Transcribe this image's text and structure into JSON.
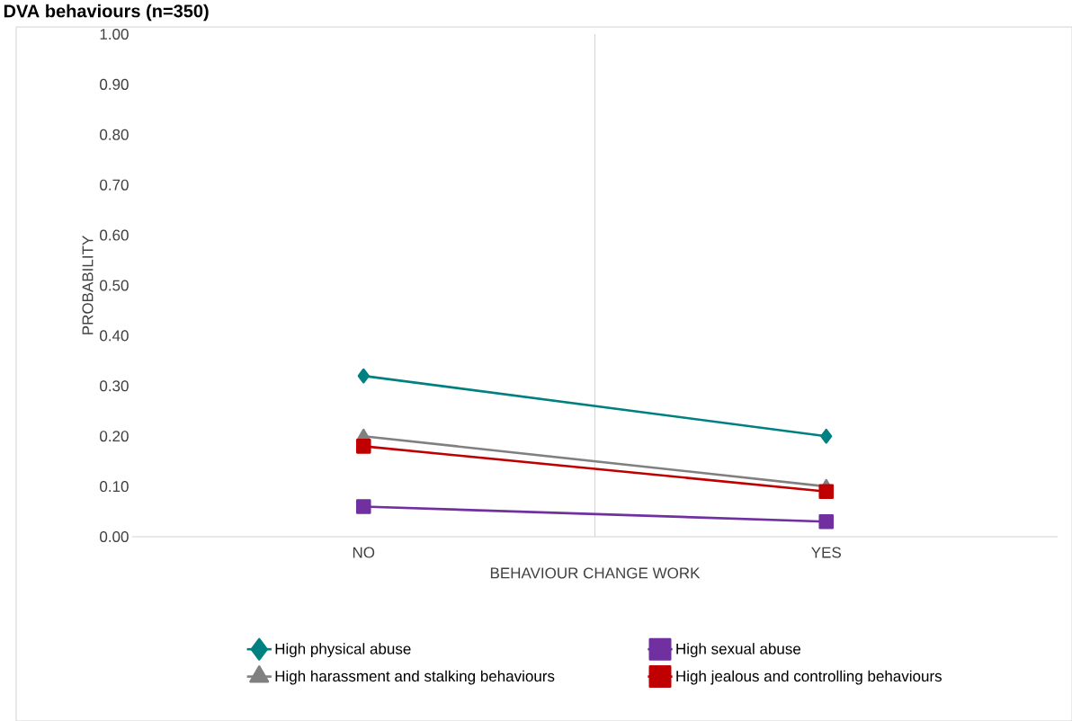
{
  "chart_data": {
    "type": "line",
    "title": "DVA behaviours (n=350)",
    "xlabel": "BEHAVIOUR CHANGE WORK",
    "ylabel": "PROBABILITY",
    "categories": [
      "NO",
      "YES"
    ],
    "series": [
      {
        "name": "High physical abuse",
        "color": "#008080",
        "marker": "diamond",
        "values": [
          0.32,
          0.2
        ]
      },
      {
        "name": "High sexual abuse",
        "color": "#7030a0",
        "marker": "square",
        "values": [
          0.06,
          0.03
        ]
      },
      {
        "name": "High harassment and stalking behaviours",
        "color": "#808080",
        "marker": "triangle",
        "values": [
          0.2,
          0.1
        ]
      },
      {
        "name": "High jealous and controlling behaviours",
        "color": "#c00000",
        "marker": "square",
        "values": [
          0.18,
          0.09
        ]
      }
    ],
    "ylim": [
      0,
      1
    ],
    "yticks": [
      {
        "value": 0,
        "label": "0.00"
      },
      {
        "value": 0.1,
        "label": "0.10"
      },
      {
        "value": 0.2,
        "label": "0.20"
      },
      {
        "value": 0.3,
        "label": "0.30"
      },
      {
        "value": 0.4,
        "label": "0.40"
      },
      {
        "value": 0.5,
        "label": "0.50"
      },
      {
        "value": 0.6,
        "label": "0.60"
      },
      {
        "value": 0.7,
        "label": "0.70"
      },
      {
        "value": 0.8,
        "label": "0.80"
      },
      {
        "value": 0.9,
        "label": "0.90"
      },
      {
        "value": 1,
        "label": "1.00"
      }
    ],
    "grid": "x",
    "legend": "bottom",
    "line_style": "solid"
  }
}
